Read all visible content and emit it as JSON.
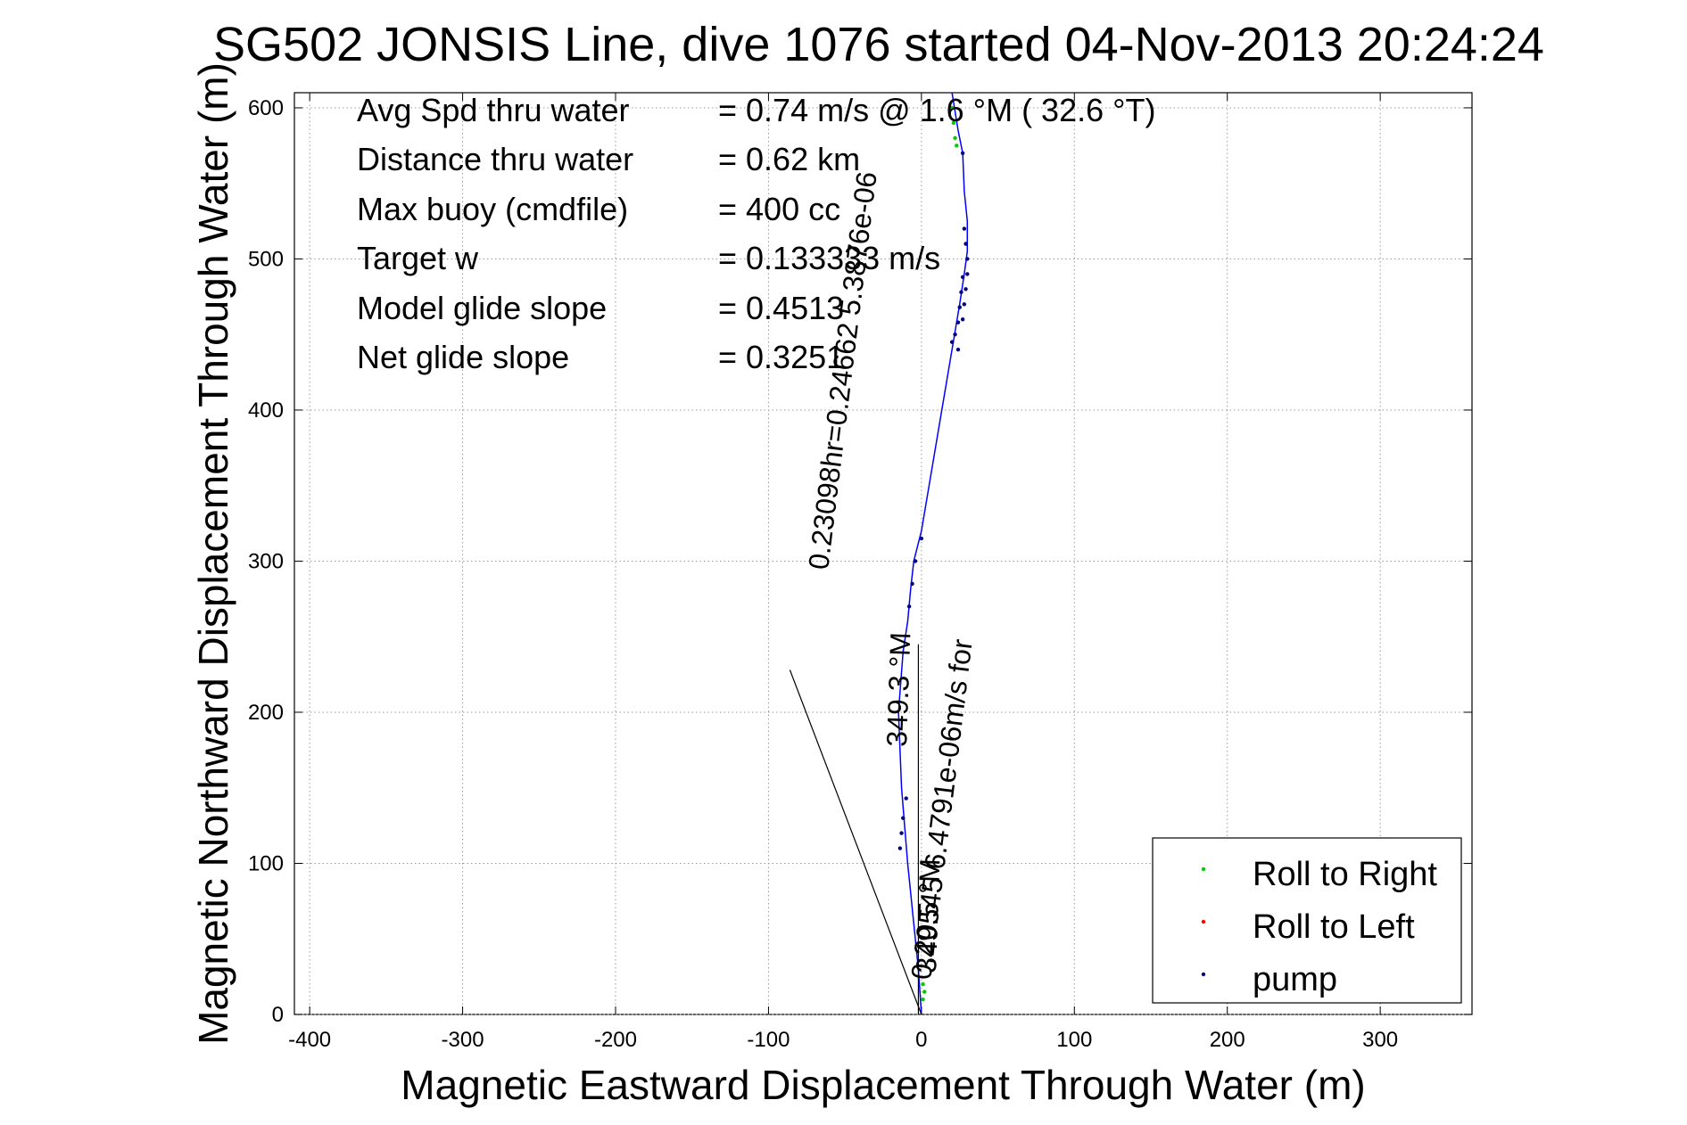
{
  "chart_data": {
    "type": "line",
    "title": "SG502 JONSIS Line, dive 1076 started 04-Nov-2013 20:24:24",
    "xlabel": "Magnetic Eastward Displacement Through Water (m)",
    "ylabel": "Magnetic Northward Displacement Through Water (m)",
    "xlim": [
      -410,
      360
    ],
    "ylim": [
      0,
      610
    ],
    "grid": true,
    "x_ticks": [
      -400,
      -300,
      -200,
      -100,
      0,
      100,
      200,
      300
    ],
    "y_ticks": [
      0,
      100,
      200,
      300,
      400,
      500,
      600
    ],
    "x_tick_labels": [
      "-400",
      "-300",
      "-200",
      "-100",
      "0",
      "100",
      "200",
      "300"
    ],
    "y_tick_labels": [
      "0",
      "100",
      "200",
      "300",
      "400",
      "500",
      "600"
    ],
    "stats": [
      {
        "label": "Avg Spd thru water",
        "value": "= 0.74 m/s @   1.6 °M ( 32.6 °T)"
      },
      {
        "label": "Distance thru water",
        "value": "=  0.62 km"
      },
      {
        "label": "Max buoy (cmdfile)",
        "value": "= 400 cc"
      },
      {
        "label": "Target w",
        "value": "= 0.133333 m/s"
      },
      {
        "label": "Model glide slope",
        "value": "= 0.4513"
      },
      {
        "label": "Net glide slope",
        "value": "= 0.3251"
      }
    ],
    "rotated_annotations": [
      "0.23098hr=0.24662 5.3876e-06",
      "0.20545 6.4791e-06m/s for",
      "349.3 °M",
      "349.5 °M"
    ],
    "legend": {
      "placement": "lower-right",
      "entries": [
        {
          "name": "Roll to Right",
          "color": "#00cc00"
        },
        {
          "name": "Roll to Left",
          "color": "#ff0000"
        },
        {
          "name": "pump",
          "color": "#000080"
        }
      ]
    },
    "series": [
      {
        "name": "track",
        "color": "#0000ff",
        "x": [
          0,
          -2,
          -5,
          -9,
          -13,
          -15,
          -12,
          -9,
          -7,
          -5,
          0,
          10,
          20,
          25,
          28,
          30,
          30,
          28,
          27,
          24,
          20
        ],
        "y": [
          0,
          30,
          60,
          100,
          150,
          200,
          240,
          260,
          282,
          300,
          320,
          380,
          440,
          470,
          490,
          505,
          525,
          545,
          570,
          585,
          610
        ]
      },
      {
        "name": "Roll to Right",
        "color": "#00cc00",
        "x": [
          20,
          21,
          22,
          23,
          1,
          2,
          1
        ],
        "y": [
          600,
          590,
          580,
          575,
          10,
          15,
          20
        ]
      },
      {
        "name": "pump",
        "color": "#000080",
        "x": [
          24,
          27,
          28,
          29,
          30,
          30,
          29,
          28,
          27,
          26,
          25,
          24,
          22,
          20,
          27,
          -4,
          -6,
          -8,
          -12,
          -14,
          -13,
          -10,
          0
        ],
        "y": [
          440,
          460,
          470,
          480,
          490,
          500,
          510,
          520,
          488,
          478,
          468,
          458,
          450,
          445,
          570,
          300,
          285,
          270,
          130,
          110,
          120,
          143,
          315
        ]
      },
      {
        "name": "current vector",
        "color": "#000000",
        "x": [
          0,
          -86
        ],
        "y": [
          0,
          228
        ]
      },
      {
        "name": "heading line",
        "color": "#000000",
        "x": [
          -2,
          -2
        ],
        "y": [
          0,
          245
        ]
      }
    ]
  }
}
